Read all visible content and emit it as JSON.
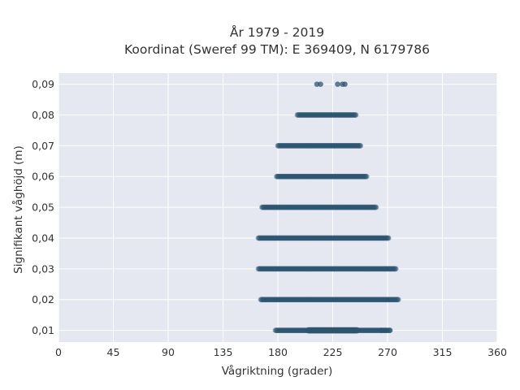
{
  "chart_data": {
    "type": "scatter",
    "title_lines": [
      "År 1979 - 2019",
      "Koordinat (Sweref 99 TM): E 369409, N 6179786"
    ],
    "xlabel": "Vågriktning (grader)",
    "ylabel": "Signifikant våghöjd (m)",
    "xlim": [
      0,
      360
    ],
    "ylim": [
      0.0062,
      0.0936
    ],
    "x_ticks": [
      0,
      45,
      90,
      135,
      180,
      225,
      270,
      315,
      360
    ],
    "x_tick_labels": [
      "0",
      "45",
      "90",
      "135",
      "180",
      "225",
      "270",
      "315",
      "360"
    ],
    "y_ticks": [
      0.01,
      0.02,
      0.03,
      0.04,
      0.05,
      0.06,
      0.07,
      0.08,
      0.09
    ],
    "y_tick_labels": [
      "0,01",
      "0,02",
      "0,03",
      "0,04",
      "0,05",
      "0,06",
      "0,07",
      "0,08",
      "0,09"
    ],
    "grid": true,
    "background_color": "#e5e8f0",
    "grid_color": "#ffffff",
    "marker_color": "#2d5570",
    "bands": [
      {
        "y": 0.01,
        "x_min": 178,
        "x_max": 272,
        "dense_from": 205,
        "dense_to": 245,
        "extra_x": [
          265,
          268,
          272
        ]
      },
      {
        "y": 0.02,
        "x_min": 166,
        "x_max": 279
      },
      {
        "y": 0.03,
        "x_min": 164,
        "x_max": 277
      },
      {
        "y": 0.04,
        "x_min": 164,
        "x_max": 271
      },
      {
        "y": 0.05,
        "x_min": 167,
        "x_max": 261
      },
      {
        "y": 0.06,
        "x_min": 179,
        "x_max": 253
      },
      {
        "y": 0.07,
        "x_min": 180,
        "x_max": 248
      },
      {
        "y": 0.08,
        "x_min": 196,
        "x_max": 244
      },
      {
        "y": 0.09,
        "x_points": [
          212,
          215,
          229,
          233,
          235
        ]
      }
    ]
  }
}
